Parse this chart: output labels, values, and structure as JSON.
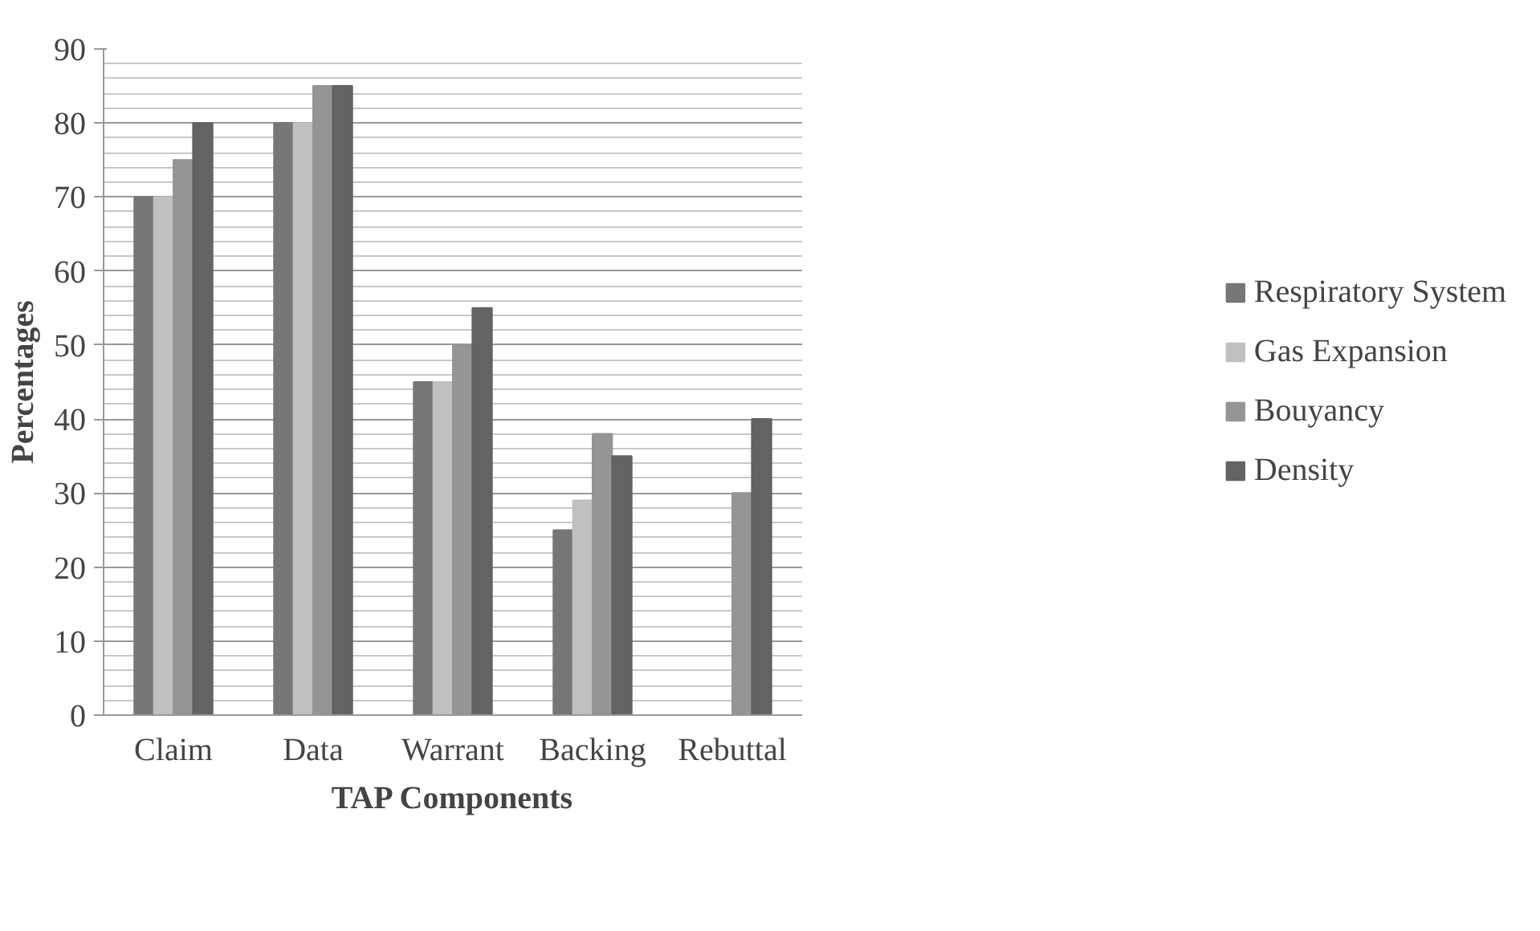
{
  "chart_data": {
    "type": "bar",
    "xlabel": "TAP Components",
    "ylabel": "Percentages",
    "categories": [
      "Claim",
      "Data",
      "Warrant",
      "Backing",
      "Rebuttal"
    ],
    "series": [
      {
        "name": "Respiratory System",
        "color": "#767676",
        "values": [
          70,
          80,
          45,
          25,
          0
        ]
      },
      {
        "name": "Gas Expansion",
        "color": "#c0c0c0",
        "values": [
          70,
          80,
          45,
          29,
          0
        ]
      },
      {
        "name": "Bouyancy",
        "color": "#959595",
        "values": [
          75,
          85,
          50,
          38,
          30
        ]
      },
      {
        "name": "Density",
        "color": "#636363",
        "values": [
          80,
          85,
          55,
          35,
          40
        ]
      }
    ],
    "ylim": [
      0,
      90
    ],
    "yticks": [
      0,
      10,
      20,
      30,
      40,
      50,
      60,
      70,
      80,
      90
    ],
    "grid": "y",
    "legend": "right"
  }
}
